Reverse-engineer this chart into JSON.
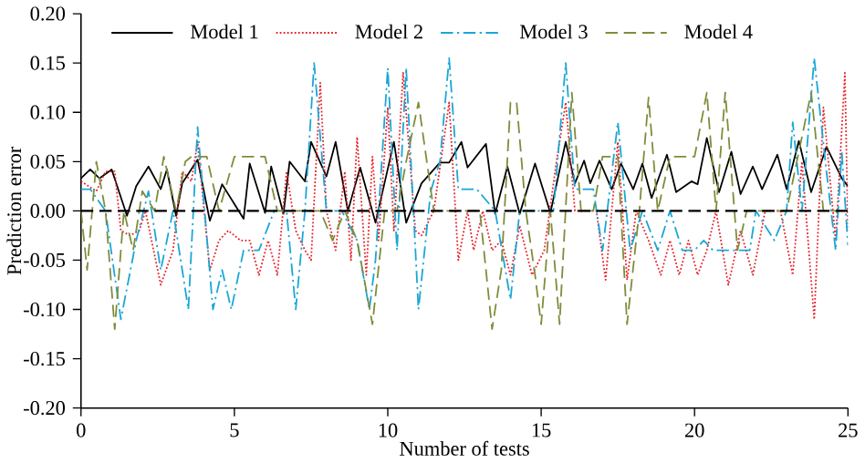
{
  "chart_data": {
    "type": "line",
    "xlabel": "Number of tests",
    "ylabel": "Prediction error",
    "xlim": [
      0,
      25
    ],
    "ylim": [
      -0.2,
      0.2
    ],
    "xticks": [
      0,
      5,
      10,
      15,
      20,
      25
    ],
    "yticks": [
      {
        "value": -0.2,
        "label": "-0.20"
      },
      {
        "value": -0.15,
        "label": "-0.15"
      },
      {
        "value": -0.1,
        "label": "-0.10"
      },
      {
        "value": -0.05,
        "label": "-0.05"
      },
      {
        "value": 0,
        "label": "0.00"
      },
      {
        "value": 0.05,
        "label": "0.05"
      },
      {
        "value": 0.1,
        "label": "0.10"
      },
      {
        "value": 0.15,
        "label": "0.15"
      },
      {
        "value": 0.2,
        "label": "0.20"
      }
    ],
    "grid": false,
    "legend": "top",
    "marker": "none",
    "ref_lines": [
      {
        "axis": "y",
        "value": 0,
        "label": null,
        "color": "#000000",
        "line_style": "dashed"
      }
    ],
    "series": [
      {
        "name": "Model 1",
        "color": "#000000",
        "line_style": "solid",
        "x": [
          0,
          0.3,
          0.6,
          1.0,
          1.5,
          1.8,
          2.2,
          2.6,
          2.8,
          3.1,
          3.3,
          3.8,
          4.2,
          4.6,
          5.3,
          5.5,
          6.0,
          6.2,
          6.6,
          6.8,
          7.3,
          7.5,
          8.0,
          8.3,
          8.7,
          9.1,
          9.6,
          10.2,
          10.6,
          11.1,
          11.7,
          12.0,
          12.4,
          12.6,
          13.2,
          13.5,
          13.9,
          14.3,
          14.8,
          15.3,
          15.8,
          16.1,
          16.4,
          16.6,
          16.9,
          17.3,
          17.6,
          18.0,
          18.3,
          18.6,
          19.1,
          19.4,
          19.9,
          20.1,
          20.4,
          20.8,
          21.2,
          21.5,
          21.9,
          22.2,
          22.7,
          23.0,
          23.4,
          23.8,
          24.3,
          24.8,
          25
        ],
        "values": [
          0.033,
          0.042,
          0.033,
          0.042,
          -0.005,
          0.025,
          0.045,
          0.022,
          0.042,
          -0.005,
          0.028,
          0.052,
          -0.01,
          0.027,
          -0.008,
          0.048,
          -0.002,
          0.045,
          -0.003,
          0.05,
          0.03,
          0.07,
          0.035,
          0.07,
          0.0,
          0.044,
          -0.012,
          0.07,
          -0.012,
          0.028,
          0.049,
          0.049,
          0.07,
          0.044,
          0.068,
          -0.003,
          0.045,
          -0.003,
          0.048,
          -0.002,
          0.07,
          0.028,
          0.051,
          0.028,
          0.051,
          0.022,
          0.048,
          0.022,
          0.048,
          0.013,
          0.057,
          0.019,
          0.03,
          0.027,
          0.074,
          0.019,
          0.06,
          0.017,
          0.045,
          0.022,
          0.057,
          0.022,
          0.071,
          0.019,
          0.065,
          0.033,
          0.025
        ]
      },
      {
        "name": "Model 2",
        "color": "#e8202a",
        "line_style": "dotted",
        "x": [
          0,
          0.5,
          0.8,
          1.1,
          1.3,
          1.6,
          1.9,
          2.1,
          2.6,
          3.0,
          3.3,
          3.6,
          3.8,
          4.2,
          4.5,
          4.8,
          5.2,
          5.5,
          5.8,
          6.1,
          6.4,
          6.7,
          7.0,
          7.3,
          7.5,
          7.8,
          8.0,
          8.3,
          8.6,
          8.8,
          9.0,
          9.3,
          9.5,
          9.7,
          10.0,
          10.2,
          10.5,
          10.9,
          11.1,
          11.5,
          12.0,
          12.3,
          12.6,
          12.8,
          13.1,
          13.4,
          13.7,
          14.0,
          14.3,
          14.7,
          15.1,
          15.5,
          15.8,
          16.1,
          16.5,
          16.8,
          17.1,
          17.5,
          17.8,
          18.1,
          18.5,
          18.9,
          19.2,
          19.5,
          19.8,
          20.1,
          20.4,
          20.7,
          21.1,
          21.5,
          21.9,
          22.3,
          22.8,
          23.2,
          23.5,
          23.9,
          24.2,
          24.6,
          24.9,
          25
        ],
        "values": [
          0.03,
          0.02,
          0.04,
          0.04,
          -0.02,
          -0.025,
          -0.02,
          0.0,
          -0.075,
          -0.04,
          0.04,
          0.03,
          0.07,
          -0.06,
          -0.03,
          -0.02,
          -0.03,
          -0.03,
          -0.065,
          -0.03,
          -0.065,
          0.04,
          -0.02,
          -0.04,
          -0.05,
          0.13,
          0.0,
          -0.04,
          0.04,
          -0.05,
          0.075,
          -0.065,
          0.055,
          -0.03,
          0.105,
          -0.02,
          0.14,
          -0.02,
          -0.025,
          0.0,
          0.11,
          -0.05,
          0.0,
          -0.04,
          0.0,
          -0.04,
          -0.03,
          -0.065,
          -0.015,
          -0.065,
          -0.04,
          0.05,
          0.11,
          0.0,
          0.0,
          0.0,
          -0.07,
          0.07,
          -0.07,
          0.0,
          -0.03,
          -0.065,
          -0.03,
          -0.065,
          -0.03,
          -0.065,
          -0.04,
          0.0,
          -0.075,
          -0.02,
          -0.065,
          0.0,
          0.0,
          -0.065,
          0.05,
          -0.11,
          0.105,
          -0.03,
          0.14,
          -0.02
        ]
      },
      {
        "name": "Model 3",
        "color": "#1aa6d6",
        "line_style": "dashdot",
        "x": [
          0,
          0.3,
          0.8,
          1.3,
          1.8,
          2.2,
          2.6,
          3.0,
          3.5,
          3.8,
          4.3,
          4.6,
          4.9,
          5.3,
          5.8,
          6.3,
          6.7,
          7.0,
          7.3,
          7.6,
          8.0,
          8.5,
          9.0,
          9.4,
          9.6,
          10.0,
          10.3,
          10.6,
          11.0,
          11.4,
          11.7,
          12.0,
          12.3,
          12.9,
          13.5,
          14.0,
          14.3,
          15.0,
          15.4,
          15.8,
          16.1,
          16.7,
          17.0,
          17.5,
          17.9,
          18.3,
          18.8,
          19.2,
          19.6,
          20.0,
          20.3,
          20.6,
          21.2,
          21.8,
          22.0,
          22.6,
          23.0,
          23.2,
          23.5,
          23.9,
          24.3,
          24.6,
          24.8,
          25
        ],
        "values": [
          0.022,
          0.022,
          0.0,
          -0.11,
          -0.03,
          0.02,
          -0.06,
          0.0,
          -0.1,
          0.085,
          -0.1,
          -0.06,
          -0.1,
          -0.04,
          -0.04,
          0.0,
          0.0,
          -0.1,
          0.0,
          0.15,
          0.0,
          0.0,
          -0.03,
          -0.1,
          -0.05,
          0.145,
          -0.04,
          0.145,
          -0.1,
          0.02,
          0.05,
          0.155,
          0.022,
          0.022,
          0.0,
          -0.09,
          0.0,
          0.0,
          0.0,
          0.15,
          0.022,
          0.022,
          -0.04,
          0.09,
          -0.04,
          0.0,
          -0.04,
          0.0,
          -0.04,
          -0.04,
          -0.03,
          -0.04,
          -0.04,
          -0.04,
          0.0,
          -0.03,
          0.0,
          0.09,
          0.0,
          0.155,
          0.04,
          -0.04,
          0.06,
          -0.035
        ]
      },
      {
        "name": "Model 4",
        "color": "#7f8c3a",
        "line_style": "dashed",
        "x": [
          0,
          0.2,
          0.5,
          0.8,
          1.1,
          1.4,
          1.7,
          2.0,
          2.4,
          2.7,
          3.1,
          3.4,
          3.6,
          4.1,
          4.5,
          5.0,
          5.5,
          6.0,
          6.4,
          6.8,
          7.3,
          7.8,
          8.2,
          8.6,
          9.0,
          9.5,
          9.9,
          10.3,
          10.6,
          11.0,
          11.5,
          12.0,
          12.5,
          13.0,
          13.4,
          13.7,
          14.0,
          14.2,
          14.5,
          14.8,
          15.0,
          15.3,
          15.6,
          16.0,
          16.3,
          16.7,
          17.0,
          17.5,
          17.8,
          18.2,
          18.5,
          18.8,
          19.2,
          20.0,
          20.4,
          20.7,
          21.0,
          21.4,
          21.7,
          22.0,
          22.5,
          23.0,
          23.4,
          23.8,
          24.2,
          24.6,
          25.0
        ],
        "values": [
          0.0,
          -0.06,
          0.05,
          0.0,
          -0.12,
          0.0,
          -0.04,
          0.02,
          0.0,
          0.055,
          0.0,
          0.05,
          0.055,
          0.055,
          0.0,
          0.055,
          0.055,
          0.055,
          0.0,
          0.0,
          0.0,
          0.0,
          -0.03,
          0.0,
          -0.03,
          -0.115,
          0.0,
          0.0,
          0.05,
          0.11,
          0.0,
          0.0,
          0.0,
          0.0,
          -0.12,
          -0.06,
          0.11,
          0.11,
          0.0,
          -0.065,
          -0.115,
          0.0,
          -0.115,
          0.12,
          0.0,
          0.0,
          0.055,
          0.055,
          -0.115,
          0.0,
          0.115,
          0.0,
          0.055,
          0.055,
          0.12,
          0.0,
          0.12,
          -0.04,
          0.0,
          0.0,
          0.0,
          0.0,
          0.06,
          0.12,
          0.0,
          0.0,
          0.0
        ]
      }
    ]
  }
}
